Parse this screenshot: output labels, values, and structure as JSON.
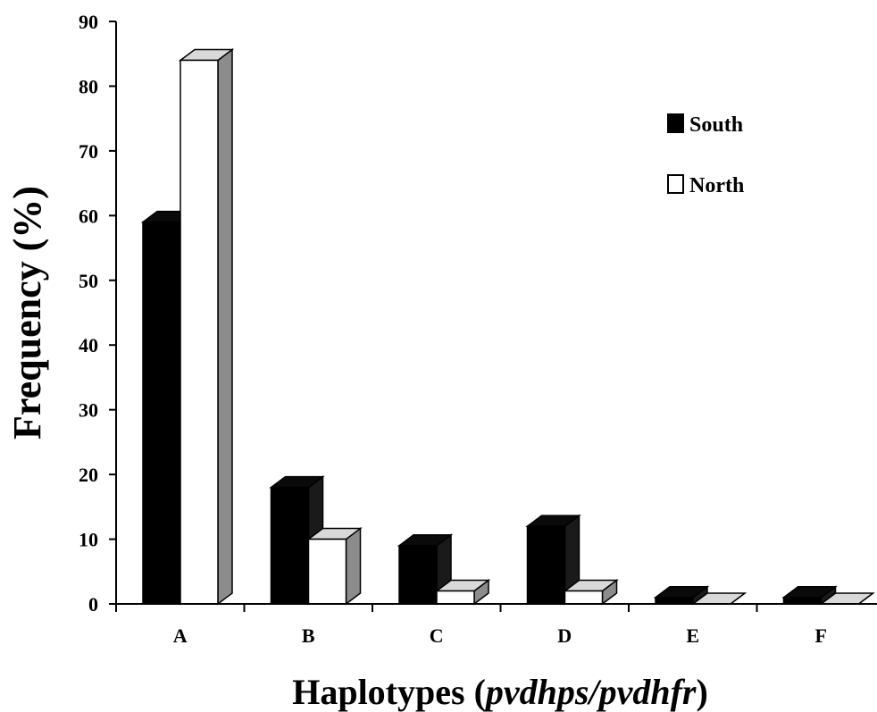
{
  "chart_data": {
    "type": "bar",
    "style": "3d-clustered-column",
    "categories": [
      "A",
      "B",
      "C",
      "D",
      "E",
      "F"
    ],
    "series": [
      {
        "name": "South",
        "color": "#000000",
        "values": [
          59,
          18,
          9,
          12,
          1,
          1
        ]
      },
      {
        "name": "North",
        "color": "#ffffff",
        "values": [
          84,
          10,
          2,
          2,
          0,
          0
        ]
      }
    ],
    "title": "",
    "xlabel_main": "Haplotypes (",
    "xlabel_italic": "pvdhps/pvdhfr",
    "xlabel_end": ")",
    "ylabel": "Frequency (%)",
    "ylim": [
      0,
      90
    ],
    "yticks": [
      "0",
      "10",
      "20",
      "30",
      "40",
      "50",
      "60",
      "70",
      "80",
      "90"
    ],
    "grid": false,
    "legend": "top-right"
  }
}
